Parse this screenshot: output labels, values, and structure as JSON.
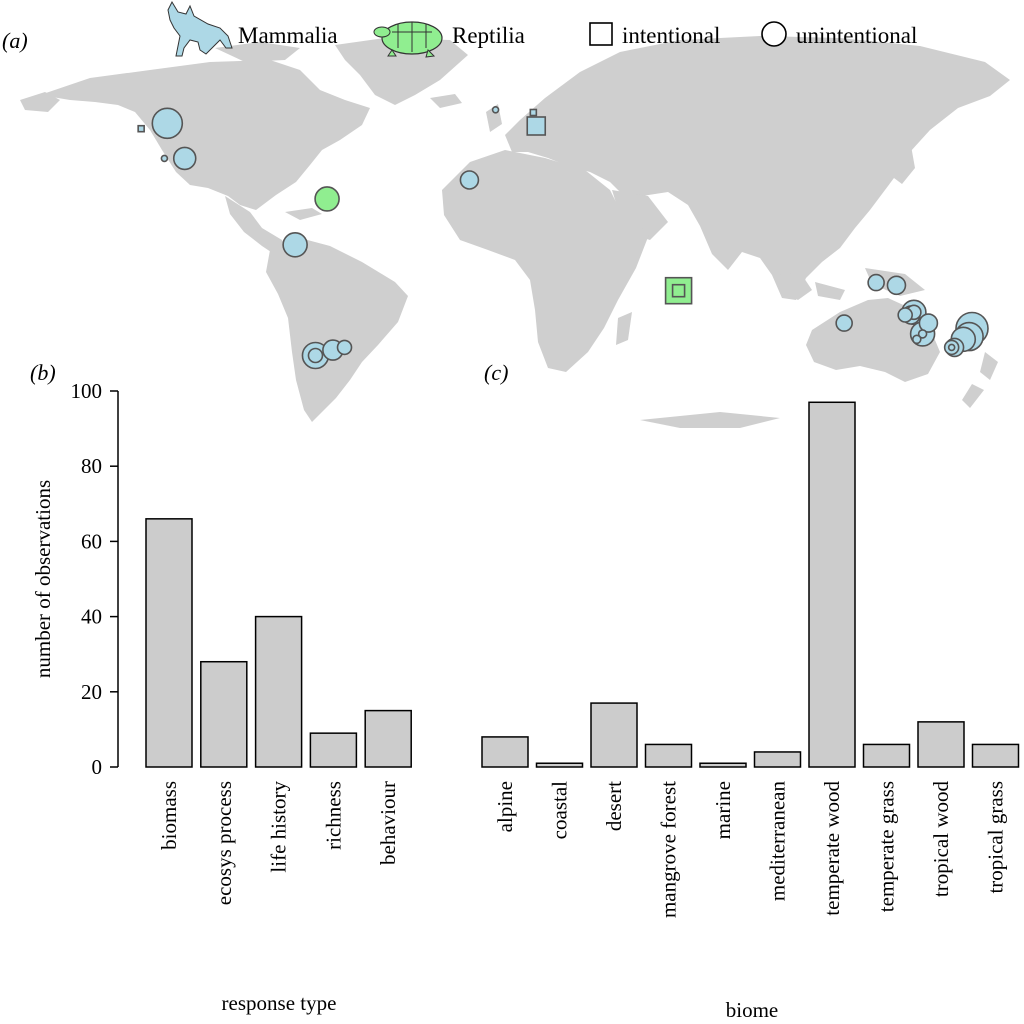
{
  "panels": {
    "a": "(a)",
    "b": "(b)",
    "c": "(c)"
  },
  "legend": {
    "mammalia": "Mammalia",
    "reptilia": "Reptilia",
    "intentional": "intentional",
    "unintentional": "unintentional"
  },
  "colors": {
    "mammalia": "#add8e6",
    "reptilia": "#90ee90",
    "bars": "#cccccc",
    "land": "#cfcfcf"
  },
  "icons": {
    "mammalia": "wolf-icon",
    "reptilia": "turtle-icon"
  },
  "chart_data": [
    {
      "type": "scatter",
      "title": "",
      "note": "world map of observation locations; circle = unintentional, square = intentional; size = number of observations",
      "points": [
        {
          "lon": -119,
          "lat": 41,
          "class": "Mammalia",
          "shape": "circle",
          "size": 15
        },
        {
          "lon": -128,
          "lat": 39,
          "class": "Mammalia",
          "shape": "square",
          "size": 3
        },
        {
          "lon": -113,
          "lat": 28,
          "class": "Mammalia",
          "shape": "circle",
          "size": 11
        },
        {
          "lon": -120,
          "lat": 28,
          "class": "Mammalia",
          "shape": "circle",
          "size": 3
        },
        {
          "lon": -64,
          "lat": 13,
          "class": "Reptilia",
          "shape": "circle",
          "size": 12
        },
        {
          "lon": -75,
          "lat": -4,
          "class": "Mammalia",
          "shape": "circle",
          "size": 12
        },
        {
          "lon": -6,
          "lat": 46,
          "class": "Mammalia",
          "shape": "circle",
          "size": 3
        },
        {
          "lon": 7,
          "lat": 45,
          "class": "Mammalia",
          "shape": "square",
          "size": 3
        },
        {
          "lon": 8,
          "lat": 40,
          "class": "Mammalia",
          "shape": "square",
          "size": 9
        },
        {
          "lon": -15,
          "lat": 20,
          "class": "Mammalia",
          "shape": "circle",
          "size": 9
        },
        {
          "lon": 57,
          "lat": -21,
          "class": "Reptilia",
          "shape": "square",
          "size": 13
        },
        {
          "lon": 57,
          "lat": -21,
          "class": "Reptilia",
          "shape": "square",
          "size": 6
        },
        {
          "lon": -68,
          "lat": -45,
          "class": "Mammalia",
          "shape": "circle",
          "size": 13
        },
        {
          "lon": -68,
          "lat": -45,
          "class": "Mammalia",
          "shape": "circle",
          "size": 7
        },
        {
          "lon": -62,
          "lat": -43,
          "class": "Mammalia",
          "shape": "circle",
          "size": 10
        },
        {
          "lon": -58,
          "lat": -42,
          "class": "Mammalia",
          "shape": "circle",
          "size": 7
        },
        {
          "lon": 125,
          "lat": -18,
          "class": "Mammalia",
          "shape": "circle",
          "size": 8
        },
        {
          "lon": 132,
          "lat": -19,
          "class": "Mammalia",
          "shape": "circle",
          "size": 9
        },
        {
          "lon": 114,
          "lat": -33,
          "class": "Mammalia",
          "shape": "circle",
          "size": 8
        },
        {
          "lon": 137,
          "lat": -30,
          "class": "Mammalia",
          "shape": "circle",
          "size": 9
        },
        {
          "lon": 138,
          "lat": -29,
          "class": "Mammalia",
          "shape": "circle",
          "size": 12
        },
        {
          "lon": 138,
          "lat": -29,
          "class": "Mammalia",
          "shape": "circle",
          "size": 7
        },
        {
          "lon": 135,
          "lat": -30,
          "class": "Mammalia",
          "shape": "circle",
          "size": 7
        },
        {
          "lon": 143,
          "lat": -33,
          "class": "Mammalia",
          "shape": "circle",
          "size": 9
        },
        {
          "lon": 141,
          "lat": -37,
          "class": "Mammalia",
          "shape": "circle",
          "size": 12
        },
        {
          "lon": 141,
          "lat": -37,
          "class": "Mammalia",
          "shape": "circle",
          "size": 4
        },
        {
          "lon": 139,
          "lat": -39,
          "class": "Mammalia",
          "shape": "circle",
          "size": 4
        },
        {
          "lon": 158,
          "lat": -35,
          "class": "Mammalia",
          "shape": "circle",
          "size": 16
        },
        {
          "lon": 157,
          "lat": -38,
          "class": "Mammalia",
          "shape": "circle",
          "size": 14
        },
        {
          "lon": 155,
          "lat": -39,
          "class": "Mammalia",
          "shape": "circle",
          "size": 12
        },
        {
          "lon": 152,
          "lat": -42,
          "class": "Mammalia",
          "shape": "circle",
          "size": 9
        },
        {
          "lon": 151,
          "lat": -42,
          "class": "Mammalia",
          "shape": "circle",
          "size": 7
        },
        {
          "lon": 151,
          "lat": -42,
          "class": "Mammalia",
          "shape": "circle",
          "size": 3
        }
      ]
    },
    {
      "type": "bar",
      "xlabel": "response type",
      "ylabel": "number of observations",
      "ylim": [
        0,
        100
      ],
      "yticks": [
        0,
        20,
        40,
        60,
        80,
        100
      ],
      "categories": [
        "biomass",
        "ecosys process",
        "life history",
        "richness",
        "behaviour"
      ],
      "values": [
        66,
        28,
        40,
        9,
        15
      ]
    },
    {
      "type": "bar",
      "xlabel": "biome",
      "ylabel": "",
      "ylim": [
        0,
        100
      ],
      "categories": [
        "alpine",
        "coastal",
        "desert",
        "mangrove forest",
        "marine",
        "mediterranean",
        "temperate wood",
        "temperate grass",
        "tropical wood",
        "tropical grass"
      ],
      "values": [
        8,
        1,
        17,
        6,
        1,
        4,
        97,
        6,
        12,
        6
      ]
    }
  ]
}
